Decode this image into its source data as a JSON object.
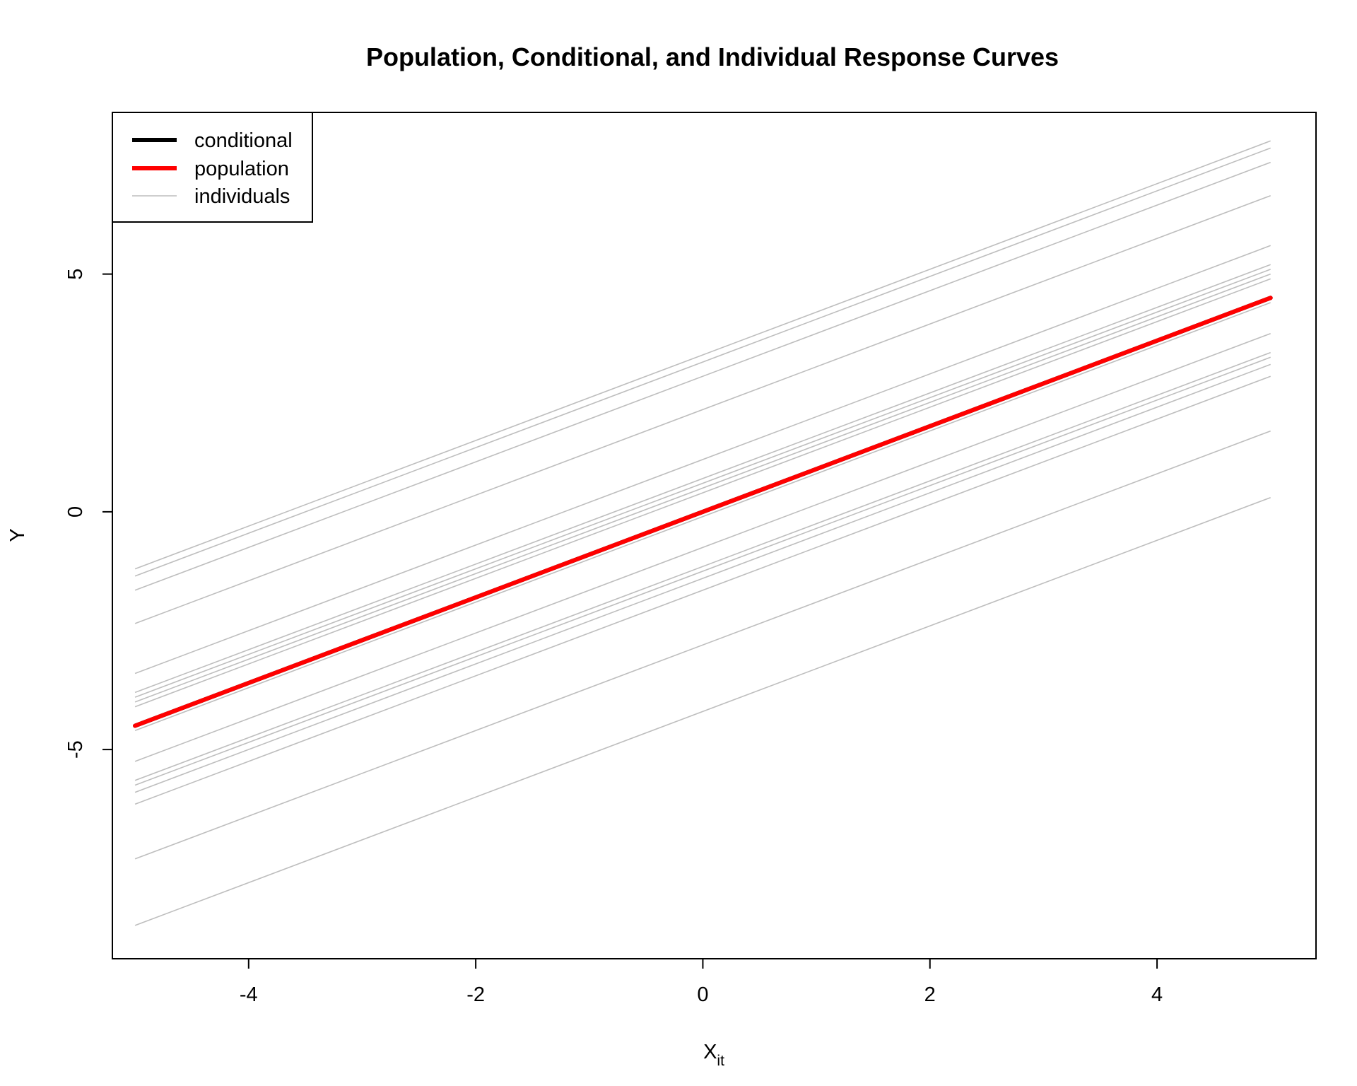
{
  "chart_data": {
    "type": "line",
    "title": "Population, Conditional, and Individual Response Curves",
    "xlabel_main": "X",
    "xlabel_sub": "it",
    "ylabel": "Y",
    "xlim": [
      -5.2,
      5.4
    ],
    "ylim": [
      -9.4,
      8.4
    ],
    "xticks": [
      -4,
      -2,
      0,
      2,
      4
    ],
    "yticks": [
      -5,
      0,
      5
    ],
    "grid": false,
    "legend_position": "top-left",
    "legend": [
      {
        "label": "conditional",
        "color": "#000000",
        "style": "thick"
      },
      {
        "label": "population",
        "color": "#ff0000",
        "style": "thick"
      },
      {
        "label": "individuals",
        "color": "#bebebe",
        "style": "thin"
      }
    ],
    "population": {
      "name": "population",
      "color": "#ff0000",
      "x": [
        -5,
        5
      ],
      "y": [
        -4.5,
        4.5
      ]
    },
    "conditional": {
      "name": "conditional",
      "color": "#000000",
      "x": [
        -5,
        5
      ],
      "y": [
        -4.5,
        4.5
      ]
    },
    "individuals_color": "#bebebe",
    "individuals": [
      {
        "x": [
          -5,
          5
        ],
        "y": [
          -1.2,
          7.8
        ]
      },
      {
        "x": [
          -5,
          5
        ],
        "y": [
          -1.35,
          7.65
        ]
      },
      {
        "x": [
          -5,
          5
        ],
        "y": [
          -1.65,
          7.35
        ]
      },
      {
        "x": [
          -5,
          5
        ],
        "y": [
          -2.35,
          6.65
        ]
      },
      {
        "x": [
          -5,
          5
        ],
        "y": [
          -3.4,
          5.6
        ]
      },
      {
        "x": [
          -5,
          5
        ],
        "y": [
          -3.8,
          5.2
        ]
      },
      {
        "x": [
          -5,
          5
        ],
        "y": [
          -3.9,
          5.1
        ]
      },
      {
        "x": [
          -5,
          5
        ],
        "y": [
          -4.0,
          5.0
        ]
      },
      {
        "x": [
          -5,
          5
        ],
        "y": [
          -4.1,
          4.9
        ]
      },
      {
        "x": [
          -5,
          5
        ],
        "y": [
          -4.6,
          4.4
        ]
      },
      {
        "x": [
          -5,
          5
        ],
        "y": [
          -5.25,
          3.75
        ]
      },
      {
        "x": [
          -5,
          5
        ],
        "y": [
          -5.65,
          3.35
        ]
      },
      {
        "x": [
          -5,
          5
        ],
        "y": [
          -5.75,
          3.25
        ]
      },
      {
        "x": [
          -5,
          5
        ],
        "y": [
          -5.9,
          3.1
        ]
      },
      {
        "x": [
          -5,
          5
        ],
        "y": [
          -6.15,
          2.85
        ]
      },
      {
        "x": [
          -5,
          5
        ],
        "y": [
          -7.3,
          1.7
        ]
      },
      {
        "x": [
          -5,
          5
        ],
        "y": [
          -8.7,
          0.3
        ]
      }
    ]
  }
}
